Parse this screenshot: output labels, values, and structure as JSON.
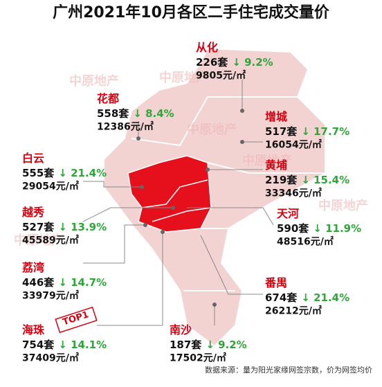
{
  "header": {
    "title": "广州2021年10月各区二手住宅成交量价"
  },
  "watermark": "中原地产",
  "badge": "TOP1",
  "districts": [
    {
      "name": "从化",
      "sales": "226套",
      "change": "↓ 9.2%",
      "price": "9805元/㎡"
    },
    {
      "name": "花都",
      "sales": "558套",
      "change": "↓ 8.4%",
      "price": "12386元/㎡"
    },
    {
      "name": "增城",
      "sales": "517套",
      "change": "↓ 17.7%",
      "price": "16054元/㎡"
    },
    {
      "name": "白云",
      "sales": "555套",
      "change": "↓ 21.4%",
      "price": "29054元/㎡"
    },
    {
      "name": "黄埔",
      "sales": "219套",
      "change": "↓ 15.4%",
      "price": "33346元/㎡"
    },
    {
      "name": "越秀",
      "sales": "527套",
      "change": "↓ 13.9%",
      "price": "45589元/㎡"
    },
    {
      "name": "天河",
      "sales": "590套",
      "change": "↓ 11.9%",
      "price": "48516元/㎡"
    },
    {
      "name": "荔湾",
      "sales": "446套",
      "change": "↓ 14.7%",
      "price": "33979元/㎡"
    },
    {
      "name": "番禺",
      "sales": "674套",
      "change": "↓ 21.4%",
      "price": "26212元/㎡"
    },
    {
      "name": "海珠",
      "sales": "754套",
      "change": "↓ 14.1%",
      "price": "37409元/㎡"
    },
    {
      "name": "南沙",
      "sales": "187套",
      "change": "↓ 9.2%",
      "price": "17502元/㎡"
    }
  ],
  "footer": {
    "source": "数据来源：量为阳光家缘网签宗数，价为网签均价"
  }
}
